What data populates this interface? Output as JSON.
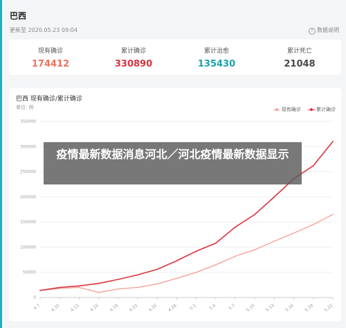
{
  "header": {
    "title": "巴西",
    "updated": "更新至 2020.05.23 09:04",
    "help_label": "数据说明"
  },
  "stats": [
    {
      "label": "现有确诊",
      "value": "174412",
      "color": "#f0705a"
    },
    {
      "label": "累计确诊",
      "value": "330890",
      "color": "#d9343c"
    },
    {
      "label": "累计治愈",
      "value": "135430",
      "color": "#1aa3a8"
    },
    {
      "label": "累计死亡",
      "value": "21048",
      "color": "#4a4a4a"
    }
  ],
  "chart": {
    "title": "巴西 现有确诊/累计确诊",
    "unit": "单位: 例"
  },
  "chart_data": {
    "type": "line",
    "x": [
      "4.7",
      "4.10",
      "4.13",
      "4.16",
      "4.19",
      "4.22",
      "4.25",
      "4.28",
      "5.1",
      "5.4",
      "5.7",
      "5.10",
      "5.13",
      "5.16",
      "5.19",
      "5.22"
    ],
    "ylim": [
      0,
      350000
    ],
    "yticks": [
      0,
      50000,
      100000,
      150000,
      200000,
      250000,
      300000,
      350000
    ],
    "grid": true,
    "legend": "top-right",
    "series": [
      {
        "name": "现有确诊",
        "color": "#f3a39a",
        "values": [
          14000,
          18000,
          20000,
          10000,
          17000,
          20000,
          27000,
          38000,
          50000,
          65000,
          82000,
          95000,
          112000,
          128000,
          145000,
          165000
        ]
      },
      {
        "name": "累计确诊",
        "color": "#d9343c",
        "values": [
          14000,
          20000,
          23000,
          28000,
          36000,
          45000,
          56000,
          73000,
          92000,
          108000,
          140000,
          165000,
          200000,
          236000,
          262000,
          310000
        ]
      }
    ]
  },
  "banner": {
    "text": "疫情最新数据消息河北／河北疫情最新数据显示"
  }
}
